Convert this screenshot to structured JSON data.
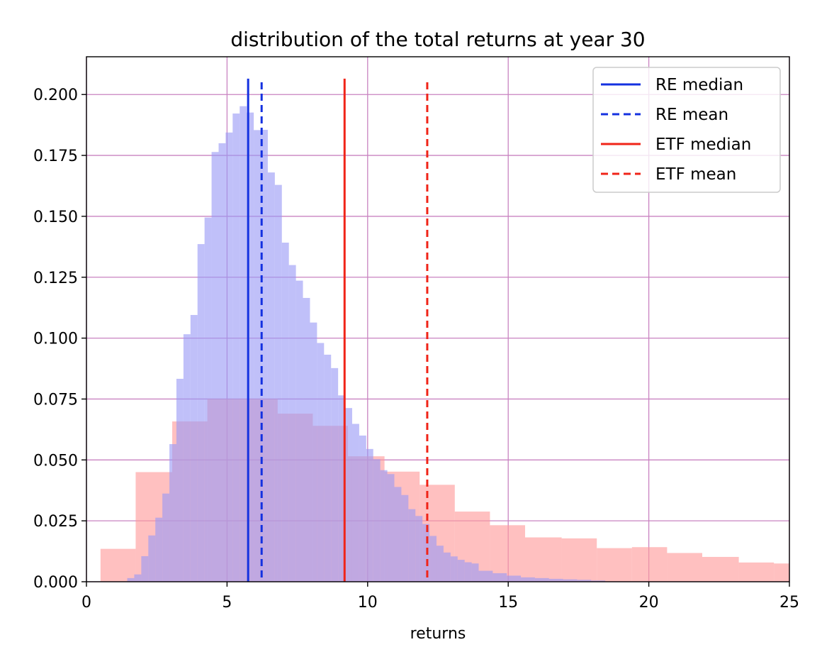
{
  "chart_data": {
    "type": "histogram",
    "title": "distribution of the total returns at year 30",
    "xlabel": "returns",
    "ylabel": "",
    "xlim": [
      0,
      25
    ],
    "ylim": [
      0,
      0.2155
    ],
    "xticks": [
      0,
      5,
      10,
      15,
      20,
      25
    ],
    "xtick_labels": [
      "0",
      "5",
      "10",
      "15",
      "20",
      "25"
    ],
    "yticks": [
      0.0,
      0.025,
      0.05,
      0.075,
      0.1,
      0.125,
      0.15,
      0.175,
      0.2
    ],
    "ytick_labels": [
      "0.000",
      "0.025",
      "0.050",
      "0.075",
      "0.100",
      "0.125",
      "0.150",
      "0.175",
      "0.200"
    ],
    "grid": true,
    "grid_color": "#c983c1",
    "legend_position": "top-right",
    "series": [
      {
        "name": "ETF",
        "kind": "histogram",
        "color": "#ff9a9a",
        "edges": [
          0.5,
          1.75,
          3.05,
          4.3,
          5.55,
          6.8,
          8.05,
          9.3,
          10.6,
          11.85,
          13.1,
          14.35,
          15.6,
          16.9,
          18.15,
          19.4,
          20.65,
          21.9,
          23.2,
          24.45,
          25.0
        ],
        "values": [
          0.0135,
          0.045,
          0.0658,
          0.075,
          0.075,
          0.069,
          0.064,
          0.0515,
          0.0452,
          0.0398,
          0.0288,
          0.0232,
          0.0182,
          0.0178,
          0.0138,
          0.0142,
          0.0118,
          0.0102,
          0.0079,
          0.0075
        ]
      },
      {
        "name": "RE",
        "kind": "histogram",
        "color": "#9a9af5",
        "edges": [
          1.45,
          1.7,
          1.95,
          2.2,
          2.45,
          2.7,
          2.95,
          3.2,
          3.45,
          3.7,
          3.95,
          4.2,
          4.45,
          4.7,
          4.95,
          5.2,
          5.45,
          5.7,
          5.95,
          6.2,
          6.45,
          6.7,
          6.95,
          7.2,
          7.45,
          7.7,
          7.95,
          8.2,
          8.45,
          8.7,
          8.95,
          9.2,
          9.45,
          9.7,
          9.95,
          10.2,
          10.45,
          10.7,
          10.95,
          11.2,
          11.45,
          11.7,
          11.95,
          12.2,
          12.45,
          12.7,
          12.95,
          13.2,
          13.45,
          13.7,
          13.95,
          14.45,
          14.95,
          15.45,
          15.95,
          16.45,
          16.95,
          17.45,
          17.95,
          18.45
        ],
        "values": [
          0.0015,
          0.003,
          0.0105,
          0.019,
          0.0263,
          0.0362,
          0.0565,
          0.0833,
          0.1016,
          0.1095,
          0.1386,
          0.1495,
          0.1764,
          0.18,
          0.1844,
          0.1922,
          0.1952,
          0.1926,
          0.1854,
          0.1855,
          0.168,
          0.1629,
          0.1392,
          0.13,
          0.1236,
          0.1165,
          0.1064,
          0.098,
          0.0932,
          0.0877,
          0.0765,
          0.0713,
          0.0648,
          0.06,
          0.0545,
          0.0503,
          0.0458,
          0.0442,
          0.0389,
          0.0356,
          0.0298,
          0.027,
          0.0237,
          0.0188,
          0.0148,
          0.012,
          0.0104,
          0.009,
          0.008,
          0.0075,
          0.0045,
          0.0035,
          0.0025,
          0.0018,
          0.0015,
          0.0012,
          0.001,
          0.0008,
          0.0005
        ]
      }
    ],
    "vlines": [
      {
        "name": "RE median",
        "x": 5.75,
        "color": "#1431e0",
        "style": "solid",
        "ymax": 0.2065
      },
      {
        "name": "RE mean",
        "x": 6.23,
        "color": "#1431e0",
        "style": "dashed",
        "ymax": 0.205
      },
      {
        "name": "ETF median",
        "x": 9.18,
        "color": "#f02418",
        "style": "solid",
        "ymax": 0.2065
      },
      {
        "name": "ETF mean",
        "x": 12.12,
        "color": "#f02418",
        "style": "dashed",
        "ymax": 0.205
      }
    ],
    "legend": [
      "RE median",
      "RE mean",
      "ETF median",
      "ETF mean"
    ]
  }
}
